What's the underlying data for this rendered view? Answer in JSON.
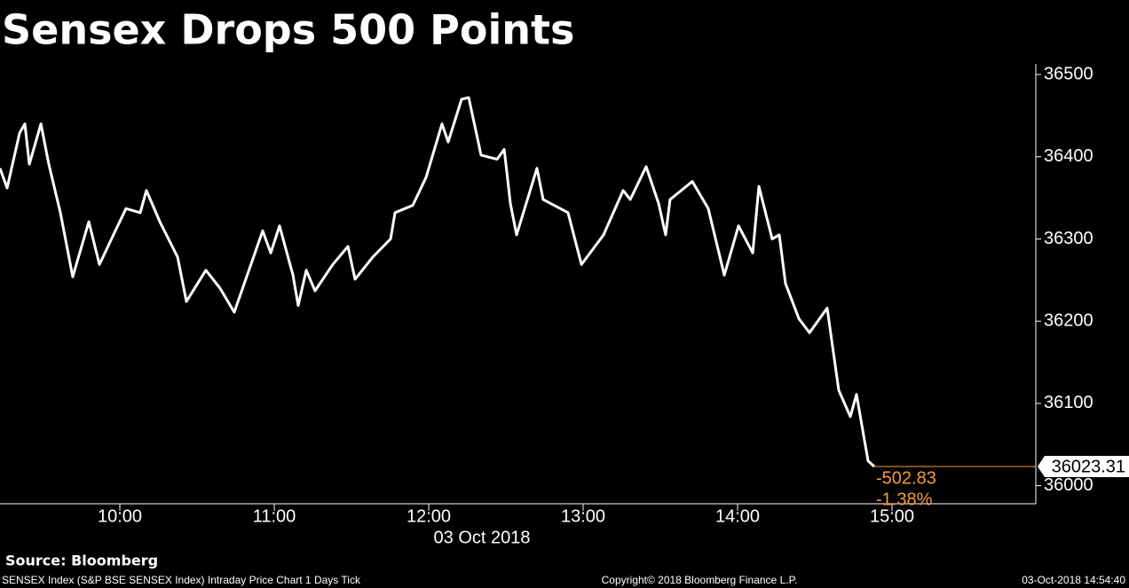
{
  "chart_data": {
    "type": "line",
    "title": "Sensex Drops 500 Points",
    "x_label": "03 Oct 2018",
    "source": "Source: Bloomberg",
    "footer_left": "SENSEX Index (S&P BSE SENSEX Index) Intraday Price Chart 1 Days  Tick",
    "footer_center": "Copyright© 2018 Bloomberg Finance L.P.",
    "footer_right": "03-Oct-2018 14:54:40",
    "annotations": [
      "-502.83",
      "-1.38%"
    ],
    "color": "#ffffff",
    "last_color": "#f39c3c",
    "xlim": [
      9.224,
      15.931
    ],
    "xticks": [
      {
        "value": 10,
        "label": "10:00"
      },
      {
        "value": 11,
        "label": "11:00"
      },
      {
        "value": 12,
        "label": "12:00"
      },
      {
        "value": 13,
        "label": "13:00"
      },
      {
        "value": 14,
        "label": "14:00"
      },
      {
        "value": 15,
        "label": "15:00"
      }
    ],
    "ylim": [
      35978,
      36513
    ],
    "yticks": [
      36000,
      36100,
      36200,
      36300,
      36400,
      36500
    ],
    "x": [
      9.224,
      9.27,
      9.351,
      9.385,
      9.414,
      9.489,
      9.54,
      9.615,
      9.695,
      9.799,
      9.868,
      9.971,
      10.04,
      10.132,
      10.172,
      10.259,
      10.374,
      10.431,
      10.557,
      10.649,
      10.741,
      10.845,
      10.925,
      10.977,
      11.034,
      11.121,
      11.155,
      11.207,
      11.264,
      11.379,
      11.477,
      11.523,
      11.638,
      11.753,
      11.782,
      11.897,
      11.983,
      12.086,
      12.126,
      12.213,
      12.259,
      12.339,
      12.443,
      12.489,
      12.529,
      12.569,
      12.701,
      12.741,
      12.902,
      12.989,
      13.132,
      13.259,
      13.305,
      13.408,
      13.489,
      13.534,
      13.563,
      13.707,
      13.81,
      13.914,
      14.006,
      14.098,
      14.138,
      14.224,
      14.27,
      14.31,
      14.397,
      14.466,
      14.58,
      14.655,
      14.73,
      14.77,
      14.845,
      14.885
    ],
    "values": [
      36386,
      36362,
      36429,
      36440,
      36391,
      36440,
      36391,
      36332,
      36254,
      36321,
      36269,
      36310,
      36337,
      36332,
      36359,
      36321,
      36278,
      36224,
      36262,
      36240,
      36211,
      36267,
      36310,
      36283,
      36316,
      36256,
      36219,
      36262,
      36237,
      36269,
      36291,
      36251,
      36278,
      36300,
      36332,
      36341,
      36375,
      36440,
      36418,
      36470,
      36472,
      36402,
      36397,
      36409,
      36343,
      36305,
      36386,
      36348,
      36332,
      36269,
      36305,
      36359,
      36348,
      36388,
      36343,
      36305,
      36348,
      36370,
      36337,
      36256,
      36316,
      36283,
      36364,
      36300,
      36305,
      36246,
      36203,
      36186,
      36216,
      36116,
      36084,
      36111,
      36030,
      36023.31
    ]
  }
}
